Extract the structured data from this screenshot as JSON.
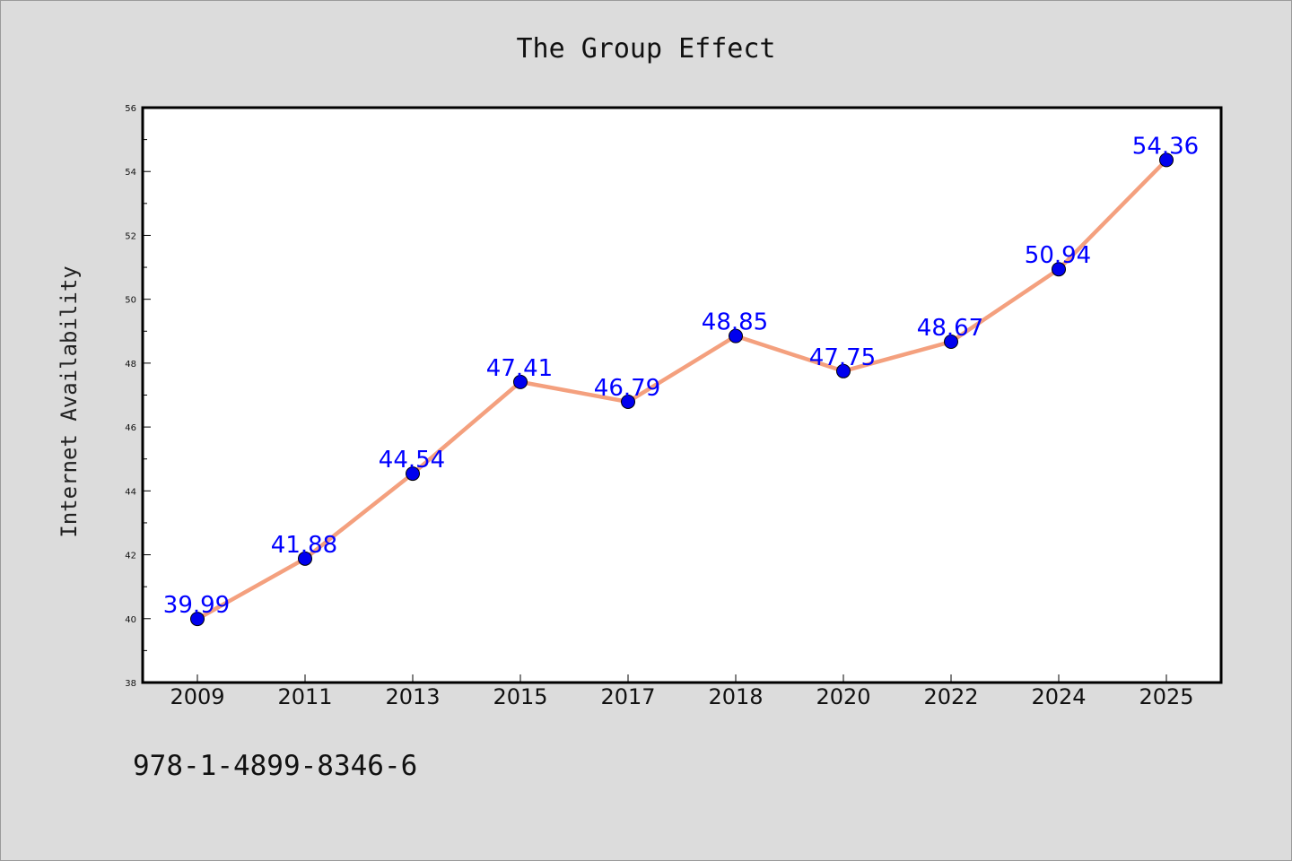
{
  "footer": {
    "code": "978-1-4899-8346-6"
  },
  "colors": {
    "background": "#dcdcdc",
    "plot_background": "#ffffff",
    "line": "#f4a07e",
    "marker": "#0000ee",
    "data_label": "#0000ff"
  },
  "chart_data": {
    "type": "line",
    "title": "The Group Effect",
    "xlabel": "",
    "ylabel": "Internet Availability",
    "categories": [
      "2009",
      "2011",
      "2013",
      "2015",
      "2017",
      "2018",
      "2020",
      "2022",
      "2024",
      "2025"
    ],
    "series": [
      {
        "values": [
          39.99,
          41.88,
          44.54,
          47.41,
          46.79,
          48.85,
          47.75,
          48.67,
          50.94,
          54.36
        ],
        "labels": [
          "39.99",
          "41.88",
          "44.54",
          "47.41",
          "46.79",
          "48.85",
          "47.75",
          "48.67",
          "50.94",
          "54.36"
        ]
      }
    ],
    "ylim": [
      38,
      56
    ],
    "yticks": [
      "38",
      "40",
      "42",
      "44",
      "46",
      "48",
      "50",
      "52",
      "54",
      "56"
    ],
    "grid": false,
    "legend": "none"
  }
}
